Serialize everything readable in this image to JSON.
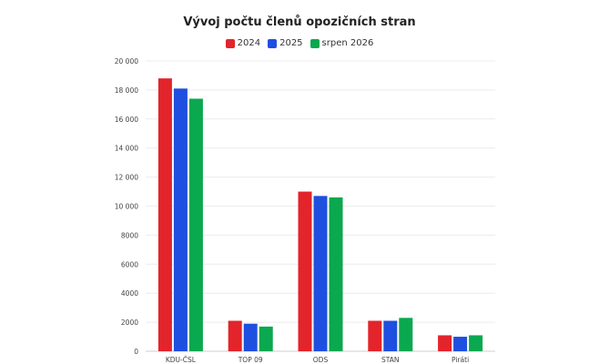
{
  "chart_data": {
    "type": "bar",
    "title": "Vývoj počtu členů opozičních stran",
    "categories": [
      "KDU-ČSL",
      "TOP 09",
      "ODS",
      "STAN",
      "Piráti"
    ],
    "series": [
      {
        "name": "2024",
        "color": "#e3242b",
        "values": [
          18800,
          2100,
          11000,
          2100,
          1100
        ]
      },
      {
        "name": "2025",
        "color": "#1f4fe0",
        "values": [
          18100,
          1900,
          10700,
          2100,
          1000
        ]
      },
      {
        "name": "srpen 2026",
        "color": "#0aa84f",
        "values": [
          17400,
          1700,
          10600,
          2300,
          1100
        ]
      }
    ],
    "ylim": [
      0,
      20000
    ],
    "yticks": [
      0,
      2000,
      4000,
      6000,
      8000,
      10000,
      12000,
      14000,
      16000,
      18000,
      20000
    ],
    "ytick_labels": [
      "0",
      "2000",
      "4000",
      "6000",
      "8000",
      "10 000",
      "12 000",
      "14 000",
      "16 000",
      "18 000",
      "20 000"
    ],
    "xlabel": "",
    "ylabel": "",
    "grid": true,
    "legend_position": "top-center"
  }
}
